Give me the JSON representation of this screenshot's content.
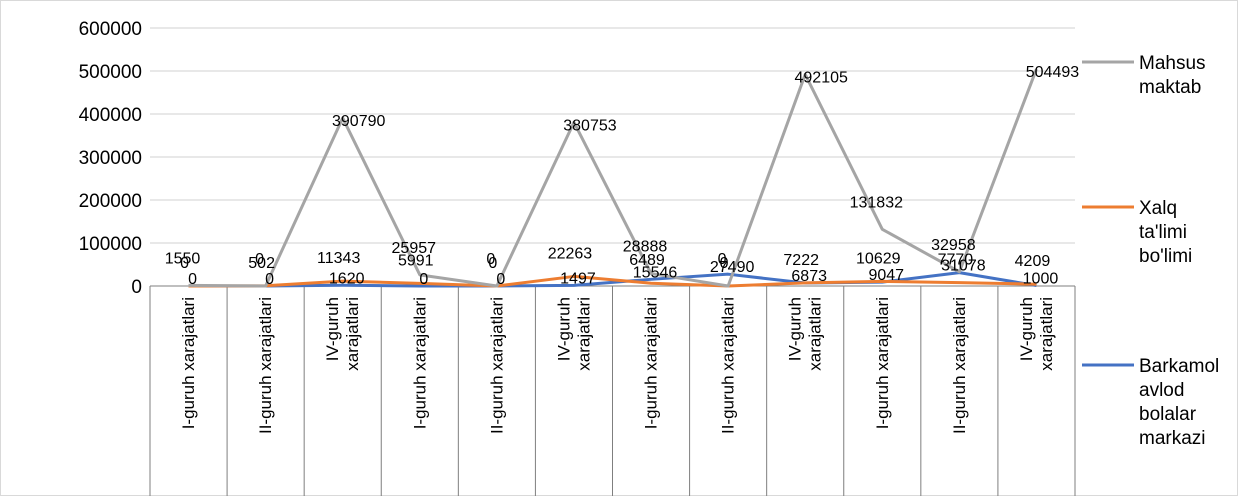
{
  "chart_data": {
    "type": "line",
    "title": "",
    "xlabel": "",
    "ylabel": "",
    "ylim": [
      0,
      600000
    ],
    "yticks": [
      "0",
      "100000",
      "200000",
      "300000",
      "400000",
      "500000",
      "600000"
    ],
    "grid": true,
    "legend_position": "right",
    "categories": [
      [
        "I-guruh xarajatlari"
      ],
      [
        "II-guruh xarajatlari"
      ],
      [
        "IV-guruh",
        "xarajatlari"
      ],
      [
        "I-guruh xarajatlari"
      ],
      [
        "II-guruh xarajatlari"
      ],
      [
        "IV-guruh",
        "xarajatlari"
      ],
      [
        "I-guruh xarajatlari"
      ],
      [
        "II-guruh xarajatlari"
      ],
      [
        "IV-guruh",
        "xarajatlari"
      ],
      [
        "I-guruh xarajatlari"
      ],
      [
        "II-guruh xarajatlari"
      ],
      [
        "IV-guruh",
        "xarajatlari"
      ]
    ],
    "series": [
      {
        "name": "Mahsus maktab",
        "name_lines": [
          "Mahsus",
          "maktab"
        ],
        "color": "#a5a5a5",
        "values": [
          1550,
          0,
          390790,
          25957,
          0,
          380753,
          28888,
          0,
          492105,
          131832,
          32958,
          504493
        ],
        "labels": [
          "1550",
          "0",
          "390790",
          "25957",
          "0",
          "380753",
          "28888",
          "0",
          "492105",
          "131832",
          "32958",
          "504493"
        ]
      },
      {
        "name": "Xalq ta'limi bo'limi",
        "name_lines": [
          "Xalq",
          "ta'limi",
          "bo'limi"
        ],
        "color": "#ed7d31",
        "values": [
          0,
          502,
          11343,
          5991,
          0,
          22263,
          6489,
          0,
          7222,
          10629,
          7770,
          4209
        ],
        "labels": [
          "0",
          "502",
          "11343",
          "5991",
          "0",
          "22263",
          "6489",
          "0",
          "7222",
          "10629",
          "7770",
          "4209"
        ]
      },
      {
        "name": "Barkamol avlod bolalar markazi",
        "name_lines": [
          "Barkamol",
          "avlod",
          "bolalar",
          "markazi"
        ],
        "color": "#4472c4",
        "values": [
          0,
          0,
          1620,
          0,
          0,
          1497,
          15546,
          27490,
          6873,
          9047,
          31078,
          1000
        ],
        "labels": [
          "0",
          "0",
          "1620",
          "0",
          "0",
          "1497",
          "15546",
          "27490",
          "6873",
          "9047",
          "31078",
          "1000"
        ]
      }
    ]
  }
}
